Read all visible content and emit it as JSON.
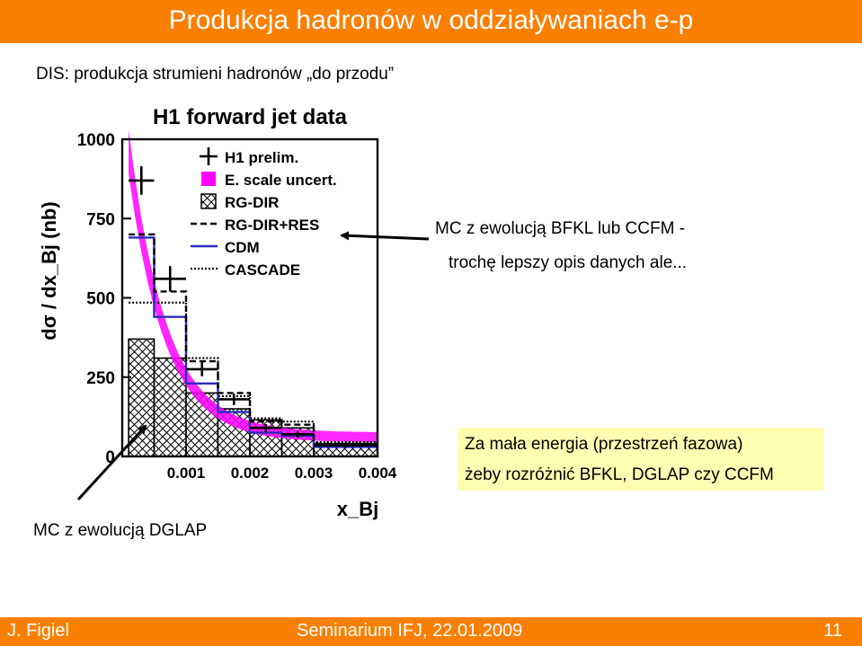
{
  "slide": {
    "title": "Produkcja hadronów w oddziaływaniach e-p",
    "subtitle": "DIS: produkcja strumieni hadronów  „do przodu”",
    "note_bfkl_line1": "MC z ewolucją BFKL  lub  CCFM -",
    "note_bfkl_line2": "trochę lepszy opis danych ale...",
    "note_box_line1": "Za mała energia (przestrzeń fazowa)",
    "note_box_line2": "żeby rozróżnić BFKL, DGLAP czy CCFM",
    "note_dglap": "MC z ewolucją DGLAP",
    "footer_author": "J. Figiel",
    "footer_event": "Seminarium IFJ, 22.01.2009",
    "footer_page": "11",
    "colors": {
      "accent": "#fb7f00",
      "box": "#ffffb3",
      "band": "#ff00ff",
      "cdm": "#2b2bbf"
    }
  },
  "chart_data": {
    "type": "histogram",
    "title": "H1 forward jet data",
    "ylabel": "dσ / dx_Bj (nb)",
    "xlabel": "x_Bj",
    "xlim": [
      0.0,
      0.004
    ],
    "ylim": [
      0,
      1000
    ],
    "x_ticks": [
      "0.001",
      "0.002",
      "0.003",
      "0.004"
    ],
    "y_ticks": [
      "0",
      "250",
      "500",
      "750",
      "1000"
    ],
    "bin_edges": [
      0.0001,
      0.0005,
      0.001,
      0.0015,
      0.002,
      0.0025,
      0.003,
      0.004
    ],
    "legend": [
      "H1 prelim.",
      "E. scale uncert.",
      "RG-DIR",
      "RG-DIR+RES",
      "CDM",
      "CASCADE"
    ],
    "series": [
      {
        "name": "H1 prelim.",
        "x": [
          0.0003,
          0.00075,
          0.00125,
          0.00175,
          0.00225,
          0.00275,
          0.0035
        ],
        "values": [
          870,
          560,
          275,
          180,
          90,
          70,
          35
        ],
        "errors": [
          45,
          40,
          22,
          18,
          12,
          10,
          8
        ]
      },
      {
        "name": "RG-DIR",
        "values": [
          370,
          310,
          200,
          150,
          115,
          90,
          40
        ]
      },
      {
        "name": "RG-DIR+RES",
        "values": [
          700,
          520,
          300,
          200,
          110,
          100,
          40
        ]
      },
      {
        "name": "CDM",
        "values": [
          690,
          440,
          230,
          140,
          75,
          65,
          30
        ]
      },
      {
        "name": "CASCADE",
        "values": [
          485,
          485,
          310,
          190,
          120,
          110,
          45
        ]
      }
    ]
  }
}
